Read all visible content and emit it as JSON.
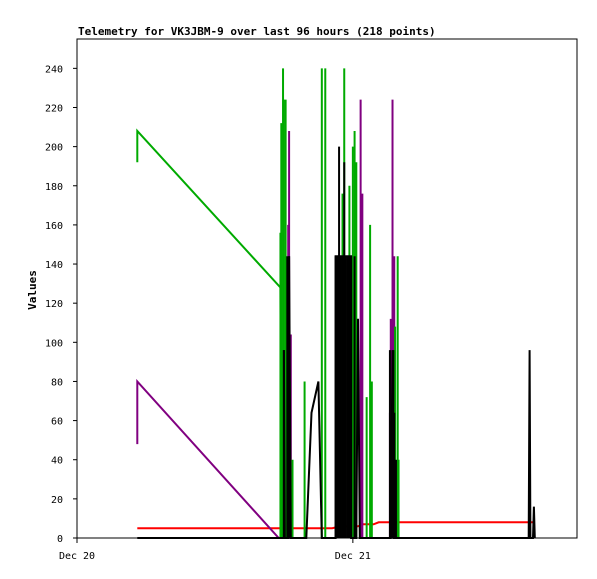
{
  "chart_data": {
    "type": "line",
    "title": "Telemetry for VK3JBM-9 over last 96 hours (218 points)",
    "xlabel": "",
    "ylabel": "Values",
    "ylim": [
      0,
      255
    ],
    "xlim": [
      0,
      29
    ],
    "x_ticks": [
      {
        "x": 0,
        "label": "Dec 20"
      },
      {
        "x": 16,
        "label": "Dec 21"
      }
    ],
    "y_ticks": [
      0,
      20,
      40,
      60,
      80,
      100,
      120,
      140,
      160,
      180,
      200,
      220,
      240
    ],
    "grid": false,
    "legend": "none",
    "series": [
      {
        "color": "#ff0000",
        "points": [
          [
            3.5,
            5
          ],
          [
            14.8,
            5
          ],
          [
            15.3,
            6
          ],
          [
            16.3,
            6
          ],
          [
            16.6,
            7
          ],
          [
            17.2,
            7
          ],
          [
            17.5,
            8
          ],
          [
            26.5,
            8
          ]
        ],
        "stems": []
      },
      {
        "color": "#800080",
        "points": [
          [
            3.5,
            48
          ],
          [
            3.5,
            80
          ],
          [
            11.7,
            0
          ],
          [
            12.3,
            0
          ],
          [
            12.3,
            208
          ],
          [
            12.3,
            0
          ],
          [
            12.5,
            0
          ]
        ],
        "stems": [
          [
            12.25,
            160
          ],
          [
            12.4,
            104
          ],
          [
            18.2,
            112
          ],
          [
            18.3,
            224
          ],
          [
            18.35,
            60
          ],
          [
            18.4,
            144
          ],
          [
            16.45,
            224
          ],
          [
            16.55,
            176
          ],
          [
            15.9,
            0
          ],
          [
            15.6,
            0
          ],
          [
            18.15,
            64
          ],
          [
            18.25,
            96
          ]
        ]
      },
      {
        "color": "#00aa00",
        "points": [
          [
            3.5,
            192
          ],
          [
            3.5,
            208
          ],
          [
            11.8,
            128
          ],
          [
            11.85,
            0
          ]
        ],
        "stems": [
          [
            11.8,
            156
          ],
          [
            11.85,
            212
          ],
          [
            11.95,
            240
          ],
          [
            12.0,
            224
          ],
          [
            12.1,
            224
          ],
          [
            12.2,
            96
          ],
          [
            12.35,
            80
          ],
          [
            12.5,
            40
          ],
          [
            13.2,
            80
          ],
          [
            13.6,
            0
          ],
          [
            13.8,
            0
          ],
          [
            14.2,
            240
          ],
          [
            14.3,
            0
          ],
          [
            14.4,
            240
          ],
          [
            15.4,
            176
          ],
          [
            15.5,
            240
          ],
          [
            15.8,
            180
          ],
          [
            16.0,
            200
          ],
          [
            16.1,
            208
          ],
          [
            16.2,
            192
          ],
          [
            16.35,
            0
          ],
          [
            16.8,
            72
          ],
          [
            17.0,
            160
          ],
          [
            17.1,
            80
          ],
          [
            17.3,
            0
          ],
          [
            18.45,
            108
          ],
          [
            18.6,
            144
          ],
          [
            18.65,
            40
          ],
          [
            18.7,
            0
          ]
        ]
      },
      {
        "color": "#000000",
        "points": [
          [
            3.5,
            0
          ],
          [
            11.7,
            0
          ],
          [
            12.0,
            0
          ],
          [
            12.0,
            96
          ],
          [
            12.05,
            0
          ],
          [
            12.25,
            0
          ],
          [
            12.3,
            144
          ],
          [
            12.4,
            0
          ],
          [
            13.3,
            0
          ],
          [
            13.6,
            64
          ],
          [
            14.0,
            80
          ],
          [
            14.2,
            0
          ],
          [
            15.0,
            0
          ],
          [
            15.0,
            144
          ],
          [
            15.9,
            144
          ],
          [
            15.9,
            0
          ],
          [
            16.2,
            0
          ],
          [
            16.3,
            112
          ],
          [
            16.4,
            0
          ],
          [
            18.2,
            0
          ],
          [
            18.3,
            96
          ],
          [
            18.35,
            0
          ],
          [
            26.2,
            0
          ],
          [
            26.25,
            96
          ],
          [
            26.3,
            0
          ],
          [
            26.45,
            0
          ],
          [
            26.5,
            16
          ],
          [
            26.55,
            0
          ]
        ],
        "stems": [
          [
            12.0,
            96
          ],
          [
            12.2,
            144
          ],
          [
            12.3,
            144
          ],
          [
            15.0,
            144
          ],
          [
            15.1,
            144
          ],
          [
            15.2,
            144
          ],
          [
            15.3,
            144
          ],
          [
            15.4,
            144
          ],
          [
            15.5,
            144
          ],
          [
            15.6,
            144
          ],
          [
            15.7,
            144
          ],
          [
            15.8,
            144
          ],
          [
            15.9,
            144
          ],
          [
            15.2,
            200
          ],
          [
            15.5,
            192
          ],
          [
            15.8,
            72
          ],
          [
            16.1,
            144
          ],
          [
            18.15,
            96
          ],
          [
            18.25,
            60
          ],
          [
            18.3,
            48
          ],
          [
            18.35,
            96
          ],
          [
            18.4,
            64
          ],
          [
            18.5,
            40
          ]
        ]
      }
    ]
  }
}
